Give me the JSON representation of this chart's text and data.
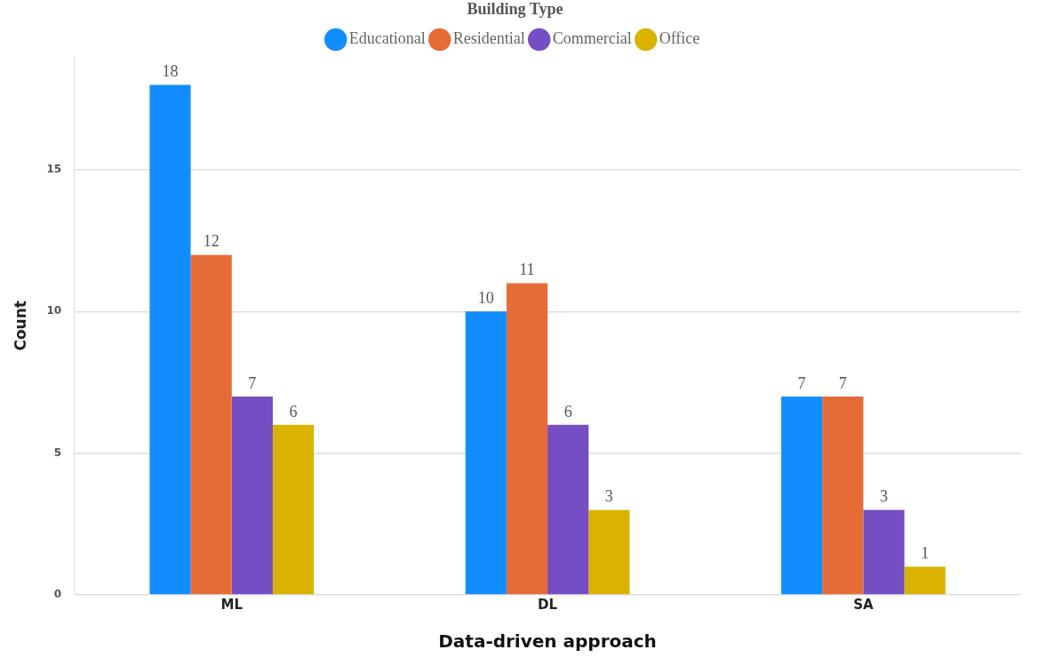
{
  "chart_data": {
    "type": "bar",
    "xlabel": "Data-driven approach",
    "ylabel": "Count",
    "legend_title": "Building Type",
    "categories": [
      "ML",
      "DL",
      "SA"
    ],
    "series": [
      {
        "name": "Educational",
        "color": "#118dff",
        "values": [
          18,
          10,
          7
        ]
      },
      {
        "name": "Residential",
        "color": "#e66c37",
        "values": [
          12,
          11,
          7
        ]
      },
      {
        "name": "Commercial",
        "color": "#744ec2",
        "values": [
          7,
          6,
          3
        ]
      },
      {
        "name": "Office",
        "color": "#d9b300",
        "values": [
          6,
          3,
          1
        ]
      }
    ],
    "ylim": [
      0,
      19
    ],
    "yticks": [
      0,
      5,
      10,
      15
    ],
    "grid": "y",
    "legend": "top",
    "marker": "circle",
    "data_labels": true
  }
}
